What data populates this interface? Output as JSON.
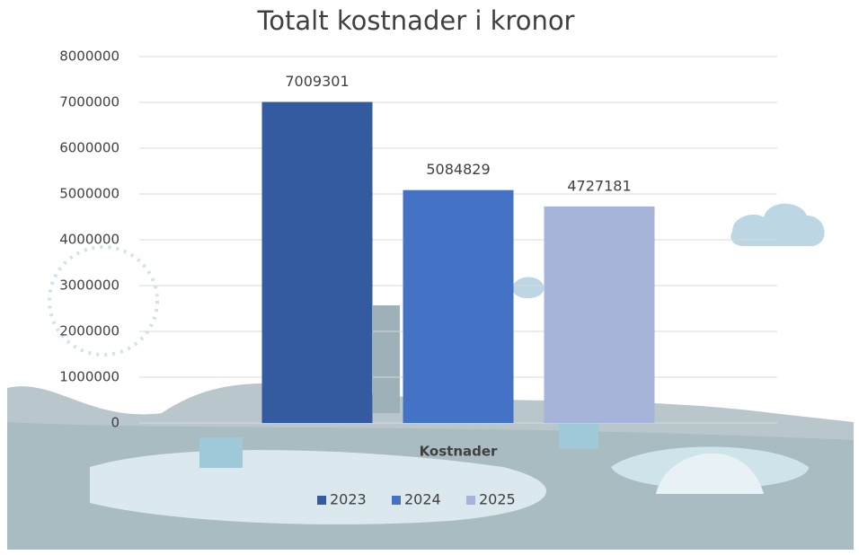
{
  "chart_data": {
    "type": "bar",
    "title": "Totalt kostnader i kronor",
    "categories": [
      "Kostnader"
    ],
    "series": [
      {
        "name": "2023",
        "color": "#345a9f",
        "values": [
          7009301
        ]
      },
      {
        "name": "2024",
        "color": "#4472c4",
        "values": [
          5084829
        ]
      },
      {
        "name": "2025",
        "color": "#a6b4d9",
        "values": [
          4727181
        ]
      }
    ],
    "ylim": [
      0,
      8000000
    ],
    "yticks": [
      0,
      1000000,
      2000000,
      3000000,
      4000000,
      5000000,
      6000000,
      7000000,
      8000000
    ],
    "grid": true,
    "legend": "bottom"
  }
}
